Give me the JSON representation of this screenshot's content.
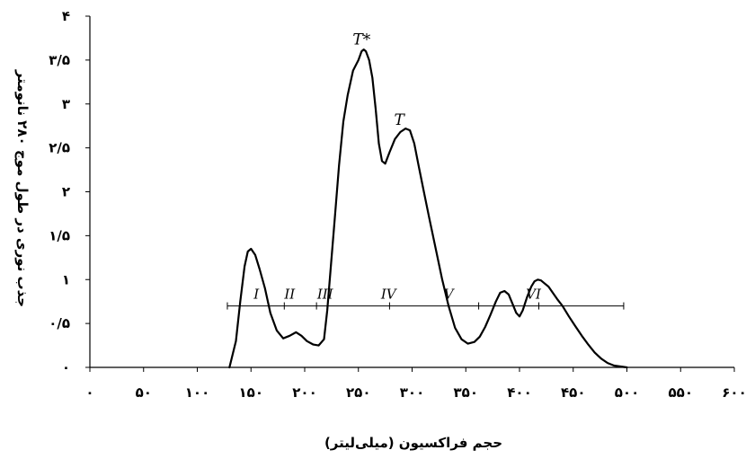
{
  "chart_data": {
    "type": "line",
    "xlabel": "حجم فراکسیون (میلی‌لیتر)",
    "ylabel": "جذب نوری در طول موج ۲۸۰ نانومتر",
    "xlim": [
      0,
      600
    ],
    "ylim": [
      0,
      4
    ],
    "x_ticks": [
      0,
      50,
      100,
      150,
      200,
      250,
      300,
      350,
      400,
      450,
      500,
      550,
      600
    ],
    "x_tick_labels": [
      "۰",
      "۵۰",
      "۱۰۰",
      "۱۵۰",
      "۲۰۰",
      "۲۵۰",
      "۳۰۰",
      "۳۵۰",
      "۴۰۰",
      "۴۵۰",
      "۵۰۰",
      "۵۵۰",
      "۶۰۰"
    ],
    "y_ticks": [
      0,
      0.5,
      1,
      1.5,
      2,
      2.5,
      3,
      3.5,
      4
    ],
    "y_tick_labels": [
      "۰",
      "۰/۵",
      "۱",
      "۱/۵",
      "۲",
      "۲/۵",
      "۳",
      "۳/۵",
      "۴"
    ],
    "grid": false,
    "series": [
      {
        "color": "#000000",
        "x": [
          130,
          136,
          140,
          144,
          147,
          150,
          154,
          158,
          163,
          168,
          174,
          180,
          186,
          192,
          197,
          202,
          208,
          213,
          218,
          221,
          224,
          228,
          232,
          236,
          240,
          245,
          250,
          253,
          255,
          257,
          260,
          263,
          266,
          269,
          272,
          275,
          279,
          284,
          289,
          294,
          298,
          302,
          306,
          311,
          316,
          322,
          328,
          334,
          340,
          346,
          352,
          358,
          363,
          368,
          373,
          378,
          382,
          386,
          390,
          393,
          397,
          400,
          403,
          407,
          411,
          414,
          417,
          420,
          423,
          427,
          431,
          435,
          440,
          446,
          452,
          458,
          464,
          470,
          476,
          482,
          488,
          494,
          500
        ],
        "y": [
          0.0,
          0.3,
          0.75,
          1.15,
          1.32,
          1.35,
          1.28,
          1.12,
          0.9,
          0.62,
          0.42,
          0.33,
          0.36,
          0.4,
          0.36,
          0.3,
          0.26,
          0.25,
          0.32,
          0.65,
          1.1,
          1.7,
          2.3,
          2.8,
          3.1,
          3.38,
          3.5,
          3.6,
          3.62,
          3.6,
          3.5,
          3.3,
          2.95,
          2.55,
          2.35,
          2.32,
          2.45,
          2.6,
          2.68,
          2.72,
          2.7,
          2.55,
          2.3,
          2.0,
          1.7,
          1.35,
          1.0,
          0.7,
          0.45,
          0.32,
          0.27,
          0.29,
          0.35,
          0.46,
          0.6,
          0.75,
          0.85,
          0.87,
          0.83,
          0.74,
          0.62,
          0.58,
          0.65,
          0.8,
          0.92,
          0.98,
          1.0,
          0.99,
          0.96,
          0.92,
          0.85,
          0.78,
          0.7,
          0.58,
          0.47,
          0.36,
          0.26,
          0.17,
          0.1,
          0.05,
          0.02,
          0.01,
          0.0
        ]
      }
    ],
    "fraction_ranges": {
      "y": 0.7,
      "ticks": [
        128,
        181,
        211,
        279,
        362,
        418,
        497
      ],
      "labels": [
        {
          "text": "I",
          "x": 155
        },
        {
          "text": "II",
          "x": 186
        },
        {
          "text": "III",
          "x": 219
        },
        {
          "text": "IV",
          "x": 278
        },
        {
          "text": "V",
          "x": 334
        },
        {
          "text": "VI",
          "x": 413
        }
      ]
    },
    "annotations": [
      {
        "text": "T*",
        "x": 253,
        "y": 3.68
      },
      {
        "text": "T",
        "x": 288,
        "y": 2.76
      }
    ]
  }
}
